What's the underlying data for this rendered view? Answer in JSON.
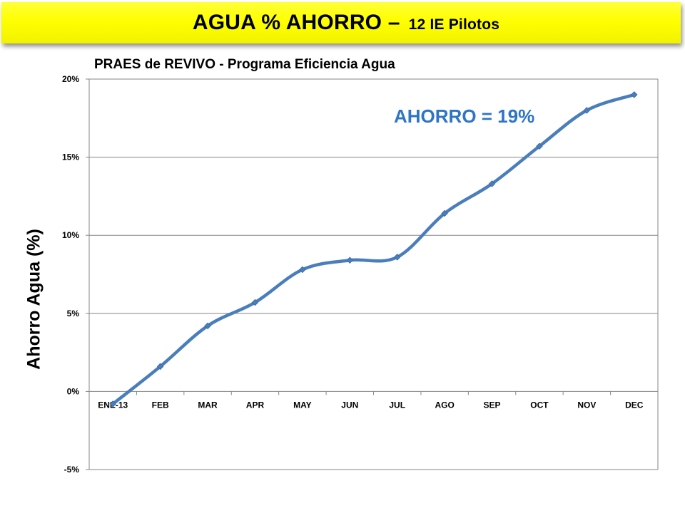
{
  "header": {
    "title_main": "AGUA %  AHORRO –",
    "title_sub": "12 IE Pilotos"
  },
  "annotation": "AHORRO = 19%",
  "colors": {
    "banner": "#ffff00",
    "line": "#4a7ebb",
    "annotation": "#2e75c6"
  },
  "chart_data": {
    "type": "line",
    "title": "PRAES de REVIVO - Programa Eficiencia Agua",
    "xlabel": "",
    "ylabel": "Ahorro Agua (%)",
    "ylim": [
      -5,
      20
    ],
    "yticks": [
      -5,
      0,
      5,
      10,
      15,
      20
    ],
    "ytick_labels": [
      "-5%",
      "0%",
      "5%",
      "10%",
      "15%",
      "20%"
    ],
    "grid": true,
    "categories": [
      "ENE-13",
      "FEB",
      "MAR",
      "APR",
      "MAY",
      "JUN",
      "JUL",
      "AGO",
      "SEP",
      "OCT",
      "NOV",
      "DEC"
    ],
    "series": [
      {
        "values": [
          -0.8,
          1.6,
          4.2,
          5.7,
          7.8,
          8.4,
          8.6,
          11.4,
          13.3,
          15.7,
          18.0,
          19.0
        ]
      }
    ]
  }
}
